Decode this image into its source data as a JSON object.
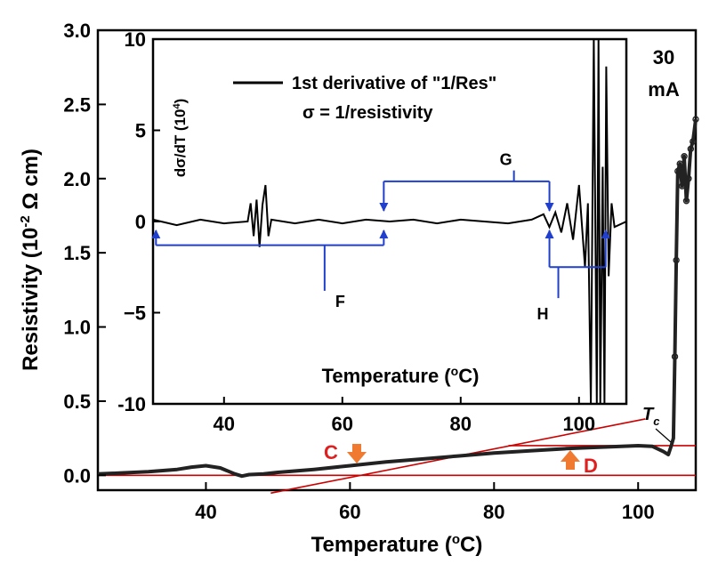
{
  "chart_data": [
    {
      "id": "main",
      "type": "line",
      "xlabel": "Temperature (°C)",
      "xlabel_parts": [
        "Temperature (",
        "o",
        "C)"
      ],
      "ylabel": "Resistivity (10^-2 Ω cm)",
      "ylabel_parts": [
        "Resistivity (10",
        "-2",
        " Ω cm)"
      ],
      "xlim": [
        25,
        108
      ],
      "ylim": [
        -0.1,
        3.0
      ],
      "xticks": [
        40,
        60,
        80,
        100
      ],
      "yticks": [
        0.0,
        0.5,
        1.0,
        1.5,
        2.0,
        2.5,
        3.0
      ],
      "ytick_labels": [
        "0.0",
        "0.5",
        "1.0",
        "1.5",
        "2.0",
        "2.5",
        "3.0"
      ],
      "annotations": {
        "current": [
          "30",
          "mA"
        ],
        "tc": [
          "T",
          "c"
        ],
        "C": "C",
        "D": "D"
      },
      "colors": {
        "data": "#222222",
        "fit": "#cc0000",
        "arrow": "#f07a30",
        "label": "#e02020"
      },
      "series": [
        {
          "name": "Resistivity",
          "x": [
            25,
            28,
            32,
            36,
            38,
            40,
            42,
            44,
            45,
            46,
            48,
            50,
            55,
            60,
            65,
            70,
            75,
            80,
            85,
            90,
            95,
            100,
            102,
            103.5,
            104.2,
            104.6,
            104.9,
            105.1,
            105.3,
            105.5,
            105.8,
            106.1,
            106.4,
            106.7,
            107,
            107.3,
            107.6,
            108
          ],
          "y": [
            0.01,
            0.015,
            0.025,
            0.04,
            0.055,
            0.065,
            0.05,
            0.01,
            -0.005,
            0.005,
            0.01,
            0.02,
            0.04,
            0.065,
            0.09,
            0.11,
            0.13,
            0.15,
            0.165,
            0.18,
            0.19,
            0.2,
            0.195,
            0.16,
            0.14,
            0.2,
            0.25,
            0.8,
            1.45,
            2.05,
            2.1,
            1.95,
            2.15,
            1.85,
            2.0,
            2.2,
            2.25,
            2.4
          ]
        }
      ],
      "fit_lines": [
        {
          "name": "baseline",
          "x": [
            25,
            108
          ],
          "y": [
            0.0,
            0.0
          ]
        },
        {
          "name": "tangent",
          "x": [
            49,
            101
          ],
          "y": [
            -0.12,
            0.38
          ]
        },
        {
          "name": "plateau",
          "x": [
            82,
            108
          ],
          "y": [
            0.2,
            0.2
          ]
        }
      ]
    },
    {
      "id": "inset",
      "type": "line",
      "xlabel": "Temperature (°C)",
      "xlabel_parts": [
        "Temperature (",
        "o",
        "C)"
      ],
      "ylabel": "dσ/dT (10^4)",
      "ylabel_parts": [
        "dσ/dT (10",
        "4",
        ")"
      ],
      "xlim": [
        28,
        108
      ],
      "ylim": [
        -10,
        10
      ],
      "xticks": [
        40,
        60,
        80,
        100
      ],
      "yticks": [
        -10,
        -5,
        0,
        5,
        10
      ],
      "ytick_labels": [
        "-10",
        "−5",
        "0",
        "5",
        "10"
      ],
      "legend": {
        "label": "1st derivative of \"1/Res\"",
        "note": "σ = 1/resistivity"
      },
      "annotations": {
        "F": "F",
        "G": "G",
        "H": "H"
      },
      "colors": {
        "data": "#000000",
        "bracket": "#1f3fcc"
      },
      "series": [
        {
          "name": "1st derivative of \"1/Res\"",
          "x": [
            28,
            32,
            36,
            40,
            44,
            44.5,
            45,
            45.5,
            46,
            46.5,
            47,
            47.5,
            48,
            52,
            56,
            60,
            64,
            68,
            72,
            76,
            80,
            84,
            88,
            92,
            94,
            95,
            96,
            97,
            98,
            99,
            100,
            101,
            101.5,
            102,
            102.5,
            103,
            103.3,
            103.6,
            104,
            104.3,
            104.6,
            105,
            105.5,
            106,
            108
          ],
          "y": [
            0.1,
            -0.2,
            0.1,
            -0.1,
            0.0,
            1.0,
            -0.8,
            1.2,
            -1.4,
            0.9,
            2.0,
            -0.8,
            0.1,
            -0.1,
            0.1,
            -0.1,
            0.1,
            0.0,
            0.1,
            -0.1,
            0.1,
            0.0,
            -0.1,
            0.1,
            0.4,
            -0.3,
            0.5,
            -0.6,
            1.0,
            -1.0,
            2.0,
            -2.5,
            1.0,
            -10,
            10,
            -10,
            10,
            -10,
            3.0,
            -10,
            8.5,
            -3.0,
            1.0,
            -0.3,
            0.0
          ]
        }
      ],
      "brackets": {
        "F": {
          "x": [
            28.5,
            67
          ],
          "y_up": -1.3,
          "stem_x": 57,
          "stem_y": -3.8
        },
        "G": {
          "x": [
            67,
            95
          ],
          "y_down": 2.2,
          "stem_x": 89,
          "stem_y": 2.8
        },
        "H": {
          "x": [
            95,
            104.5
          ],
          "y_up": -2.5,
          "stem_x": 96.5,
          "stem_y": -4.2
        }
      }
    }
  ]
}
